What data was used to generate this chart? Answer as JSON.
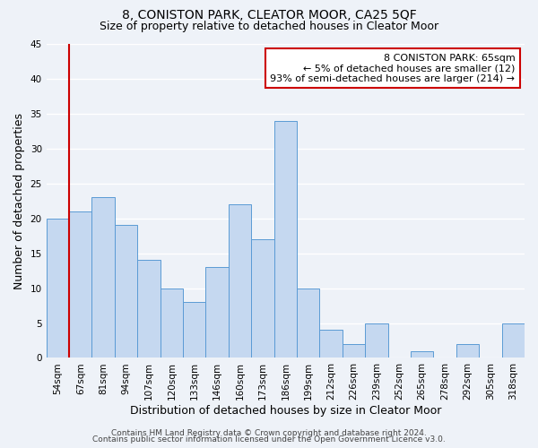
{
  "title": "8, CONISTON PARK, CLEATOR MOOR, CA25 5QF",
  "subtitle": "Size of property relative to detached houses in Cleator Moor",
  "xlabel": "Distribution of detached houses by size in Cleator Moor",
  "ylabel": "Number of detached properties",
  "categories": [
    "54sqm",
    "67sqm",
    "81sqm",
    "94sqm",
    "107sqm",
    "120sqm",
    "133sqm",
    "146sqm",
    "160sqm",
    "173sqm",
    "186sqm",
    "199sqm",
    "212sqm",
    "226sqm",
    "239sqm",
    "252sqm",
    "265sqm",
    "278sqm",
    "292sqm",
    "305sqm",
    "318sqm"
  ],
  "values": [
    20,
    21,
    23,
    19,
    14,
    10,
    8,
    13,
    22,
    17,
    34,
    10,
    4,
    2,
    5,
    0,
    1,
    0,
    2,
    0,
    5
  ],
  "bar_color": "#c5d8f0",
  "bar_edge_color": "#5b9bd5",
  "marker_color": "#cc0000",
  "annotation_title": "8 CONISTON PARK: 65sqm",
  "annotation_line1": "← 5% of detached houses are smaller (12)",
  "annotation_line2": "93% of semi-detached houses are larger (214) →",
  "annotation_box_color": "#cc0000",
  "ylim": [
    0,
    45
  ],
  "yticks": [
    0,
    5,
    10,
    15,
    20,
    25,
    30,
    35,
    40,
    45
  ],
  "footer1": "Contains HM Land Registry data © Crown copyright and database right 2024.",
  "footer2": "Contains public sector information licensed under the Open Government Licence v3.0.",
  "background_color": "#eef2f8",
  "grid_color": "#ffffff",
  "title_fontsize": 10,
  "subtitle_fontsize": 9,
  "axis_label_fontsize": 9,
  "tick_fontsize": 7.5,
  "footer_fontsize": 6.5
}
